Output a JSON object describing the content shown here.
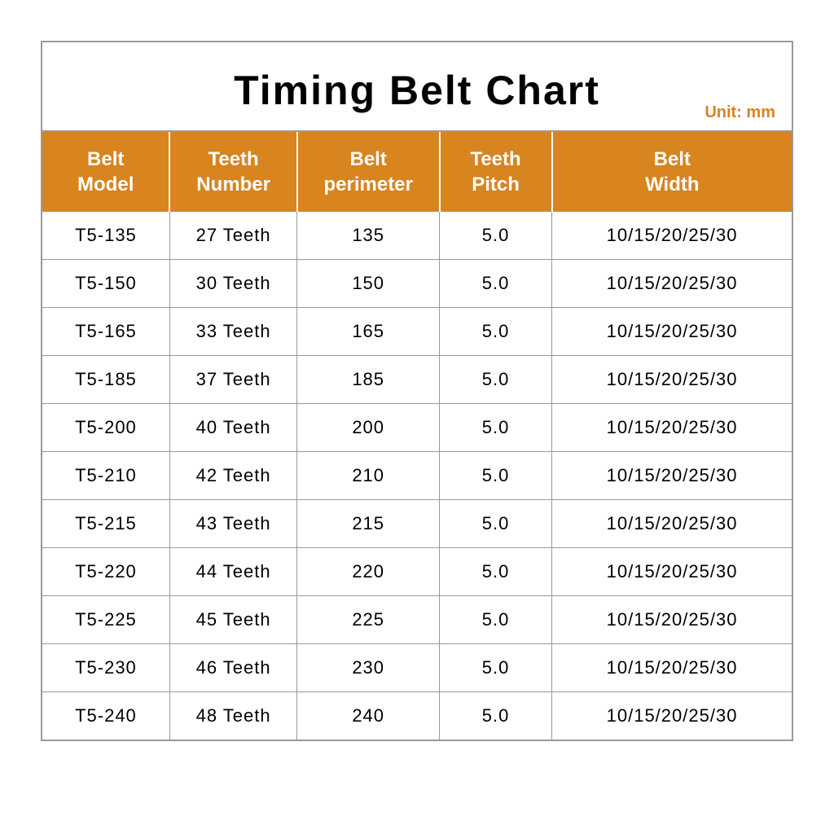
{
  "title": "Timing Belt Chart",
  "unit_label": "Unit: mm",
  "colors": {
    "header_bg": "#d8841f",
    "header_text": "#ffffff",
    "border": "#999999",
    "unit_text": "#d8841f",
    "cell_text": "#000000",
    "background": "#ffffff"
  },
  "table": {
    "columns": [
      {
        "label": "Belt\nModel",
        "width": "17%"
      },
      {
        "label": "Teeth\nNumber",
        "width": "17%"
      },
      {
        "label": "Belt\nperimeter",
        "width": "19%"
      },
      {
        "label": "Teeth\nPitch",
        "width": "15%"
      },
      {
        "label": "Belt\nWidth",
        "width": "32%"
      }
    ],
    "rows": [
      [
        "T5-135",
        "27 Teeth",
        "135",
        "5.0",
        "10/15/20/25/30"
      ],
      [
        "T5-150",
        "30 Teeth",
        "150",
        "5.0",
        "10/15/20/25/30"
      ],
      [
        "T5-165",
        "33 Teeth",
        "165",
        "5.0",
        "10/15/20/25/30"
      ],
      [
        "T5-185",
        "37 Teeth",
        "185",
        "5.0",
        "10/15/20/25/30"
      ],
      [
        "T5-200",
        "40 Teeth",
        "200",
        "5.0",
        "10/15/20/25/30"
      ],
      [
        "T5-210",
        "42 Teeth",
        "210",
        "5.0",
        "10/15/20/25/30"
      ],
      [
        "T5-215",
        "43 Teeth",
        "215",
        "5.0",
        "10/15/20/25/30"
      ],
      [
        "T5-220",
        "44 Teeth",
        "220",
        "5.0",
        "10/15/20/25/30"
      ],
      [
        "T5-225",
        "45 Teeth",
        "225",
        "5.0",
        "10/15/20/25/30"
      ],
      [
        "T5-230",
        "46 Teeth",
        "230",
        "5.0",
        "10/15/20/25/30"
      ],
      [
        "T5-240",
        "48 Teeth",
        "240",
        "5.0",
        "10/15/20/25/30"
      ]
    ]
  },
  "typography": {
    "title_fontsize": 50,
    "header_fontsize": 24,
    "cell_fontsize": 22,
    "unit_fontsize": 20
  }
}
